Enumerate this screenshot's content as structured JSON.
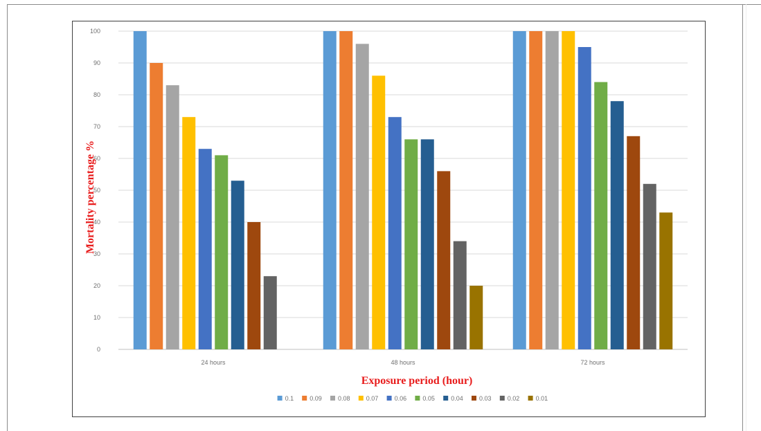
{
  "chart_data": {
    "type": "bar",
    "categories": [
      "24 hours",
      "48 hours",
      "72 hours"
    ],
    "series": [
      {
        "name": "0.1",
        "values": [
          100,
          100,
          100
        ],
        "color": "#5b9bd5"
      },
      {
        "name": "0.09",
        "values": [
          90,
          100,
          100
        ],
        "color": "#ed7d31"
      },
      {
        "name": "0.08",
        "values": [
          83,
          96,
          100
        ],
        "color": "#a5a5a5"
      },
      {
        "name": "0.07",
        "values": [
          73,
          86,
          100
        ],
        "color": "#ffc000"
      },
      {
        "name": "0.06",
        "values": [
          63,
          73,
          95
        ],
        "color": "#4472c4"
      },
      {
        "name": "0.05",
        "values": [
          61,
          66,
          84
        ],
        "color": "#70ad47"
      },
      {
        "name": "0.04",
        "values": [
          53,
          66,
          78
        ],
        "color": "#255e91"
      },
      {
        "name": "0.03",
        "values": [
          40,
          56,
          67
        ],
        "color": "#9e480e"
      },
      {
        "name": "0.02",
        "values": [
          23,
          34,
          52
        ],
        "color": "#636363"
      },
      {
        "name": "0.01",
        "values": [
          null,
          20,
          43
        ],
        "color": "#997300"
      }
    ],
    "xlabel": "Exposure period (hour)",
    "ylabel": "Mortality percentage %",
    "ylim": [
      0,
      100
    ],
    "yticks": [
      0,
      10,
      20,
      30,
      40,
      50,
      60,
      70,
      80,
      90,
      100
    ],
    "grid": true,
    "legend": "bottom"
  }
}
